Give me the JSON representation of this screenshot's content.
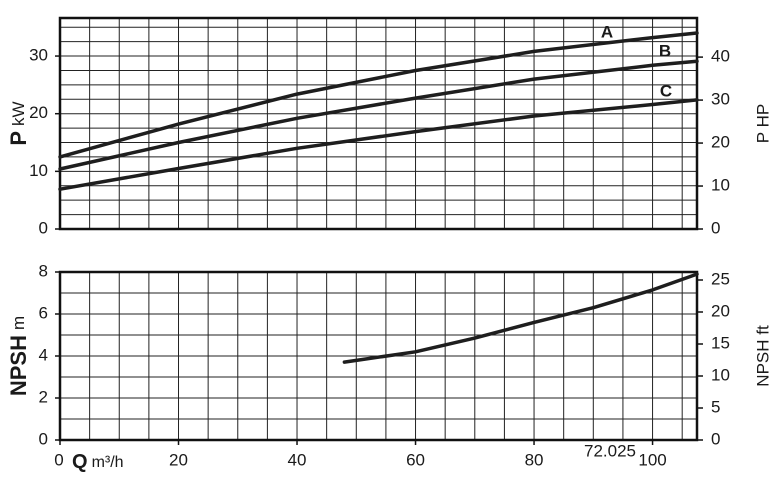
{
  "chart_data": [
    {
      "type": "line",
      "ylabel": "P",
      "ylabel_unit": "kW",
      "y2label": "P HP",
      "xlim": [
        0,
        107.5
      ],
      "ylim": [
        0,
        36.6
      ],
      "yticks": [
        0,
        10,
        20,
        30
      ],
      "y2lim": [
        0,
        49.1
      ],
      "y2ticks": [
        0,
        10,
        20,
        30,
        40
      ],
      "grid": true,
      "xgrid": [
        0,
        5,
        10,
        15,
        20,
        25,
        30,
        35,
        40,
        45,
        50,
        55,
        60,
        65,
        70,
        75,
        80,
        85,
        90,
        95,
        100,
        105
      ],
      "ygrid": [
        0,
        2.5,
        5,
        7.5,
        10,
        12.5,
        15,
        17.5,
        20,
        22.5,
        25,
        27.5,
        30,
        32.5,
        35
      ],
      "series": [
        {
          "name": "A",
          "color": "#1e1e1e",
          "x": [
            0,
            20,
            40,
            60,
            80,
            100,
            107.5
          ],
          "values": [
            12.5,
            18.2,
            23.4,
            27.5,
            30.8,
            33.2,
            34.0
          ]
        },
        {
          "name": "B",
          "color": "#1e1e1e",
          "x": [
            0,
            20,
            40,
            60,
            80,
            100,
            107.5
          ],
          "values": [
            10.4,
            15.0,
            19.2,
            22.7,
            26.0,
            28.4,
            29.1
          ]
        },
        {
          "name": "C",
          "color": "#1e1e1e",
          "x": [
            0,
            20,
            40,
            60,
            80,
            100,
            107.5
          ],
          "values": [
            6.9,
            10.5,
            14.0,
            16.9,
            19.6,
            21.6,
            22.4
          ]
        }
      ]
    },
    {
      "type": "line",
      "ylabel": "NPSH",
      "ylabel_unit": "m",
      "y2label": "NPSH ft",
      "xlabel": "Q",
      "xlabel_unit": "m³/h",
      "note": "72.025",
      "xlim": [
        0,
        107.5
      ],
      "xticks": [
        0,
        20,
        40,
        60,
        80,
        100
      ],
      "ylim": [
        0,
        8
      ],
      "yticks": [
        0,
        2,
        4,
        6,
        8
      ],
      "y2lim": [
        0,
        26.25
      ],
      "y2ticks": [
        0,
        5,
        10,
        15,
        20,
        25
      ],
      "grid": true,
      "xgrid": [
        0,
        5,
        10,
        15,
        20,
        25,
        30,
        35,
        40,
        45,
        50,
        55,
        60,
        65,
        70,
        75,
        80,
        85,
        90,
        95,
        100,
        105
      ],
      "ygrid": [
        0,
        1,
        2,
        3,
        4,
        5,
        6,
        7,
        8
      ],
      "series": [
        {
          "name": "NPSH",
          "color": "#1e1e1e",
          "x": [
            48,
            60,
            70,
            80,
            90,
            100,
            107.5
          ],
          "values": [
            3.71,
            4.2,
            4.85,
            5.6,
            6.3,
            7.15,
            7.9
          ]
        }
      ]
    }
  ]
}
